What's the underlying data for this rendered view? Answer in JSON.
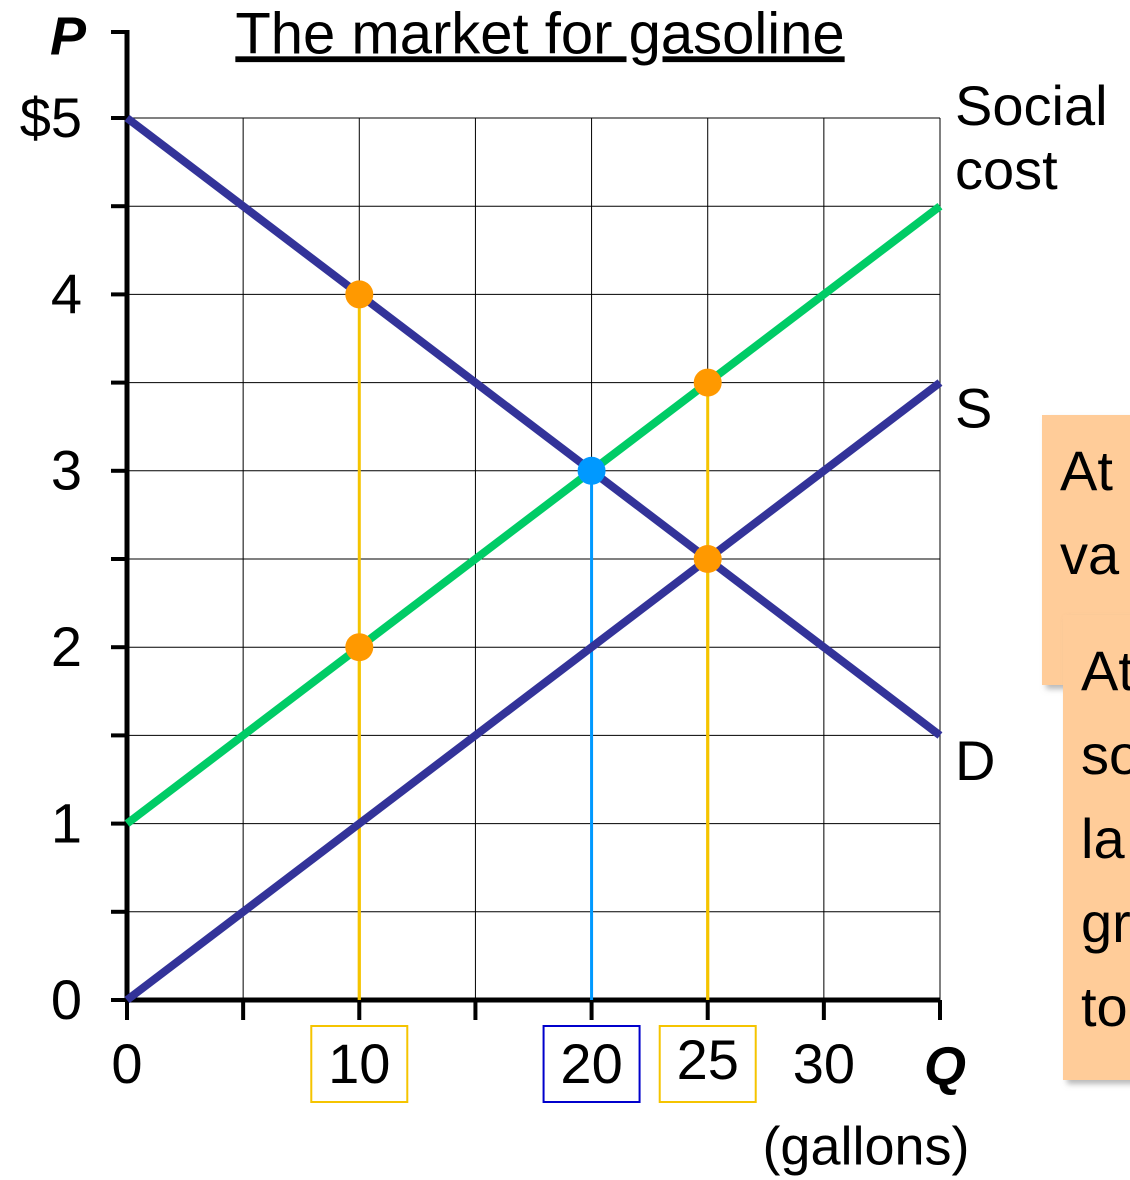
{
  "chart_data": {
    "type": "line",
    "title": "The market for gasoline",
    "y_label": "P",
    "x_label": "Q",
    "x_unit": "(gallons)",
    "x": [
      0,
      35
    ],
    "series": [
      {
        "name": "D",
        "color": "#333399",
        "values": [
          5,
          1.5
        ]
      },
      {
        "name": "S",
        "color": "#333399",
        "values": [
          0,
          3.5
        ]
      },
      {
        "name": "Social cost",
        "color": "#00cc66",
        "values": [
          1,
          4.5
        ]
      }
    ],
    "points": [
      {
        "x": 10,
        "y": 4,
        "color": "#ff9900",
        "drop_color": "#f5c400"
      },
      {
        "x": 10,
        "y": 2,
        "color": "#ff9900",
        "drop_color": "#f5c400"
      },
      {
        "x": 25,
        "y": 3.5,
        "color": "#ff9900",
        "drop_color": "#f5c400"
      },
      {
        "x": 25,
        "y": 2.5,
        "color": "#ff9900",
        "drop_color": "#f5c400"
      },
      {
        "x": 20,
        "y": 3,
        "color": "#0099ff",
        "drop_color": "#0099ff"
      }
    ],
    "xlim": [
      0,
      35
    ],
    "ylim": [
      0,
      5
    ],
    "xticks": [
      0,
      {
        "value": 10,
        "label": "10",
        "box": "#f5c400"
      },
      {
        "value": 20,
        "label": "20",
        "box": "#0000cc"
      },
      {
        "value": 25,
        "label": "25",
        "box": "#f5c400"
      },
      30
    ],
    "yticks": [
      {
        "value": 5,
        "label": "$5"
      },
      4,
      3,
      2,
      1,
      0
    ],
    "xgrid": [
      0,
      5,
      10,
      15,
      20,
      25,
      30,
      35
    ],
    "ygrid": [
      0,
      0.5,
      1,
      1.5,
      2,
      2.5,
      3,
      3.5,
      4,
      4.5,
      5
    ],
    "grid": true,
    "notes": [
      {
        "lines": [
          "At",
          "va"
        ]
      },
      {
        "lines": [
          "At",
          "so",
          "la",
          "gr",
          "to"
        ]
      }
    ]
  }
}
